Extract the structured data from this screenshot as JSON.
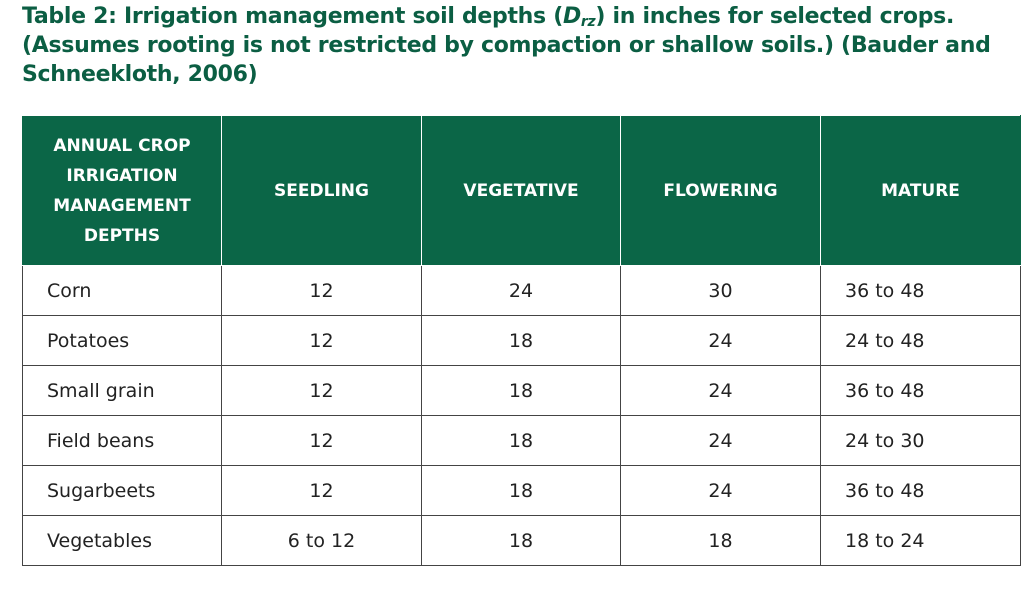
{
  "caption": {
    "part1": "Table 2: Irrigation management soil depths (",
    "symbol": "D",
    "subscript": "rz",
    "part2": ") in inches for selected crops. (Assumes rooting is not restricted by compaction or shallow soils.) (Bauder and Schneekloth, 2006)"
  },
  "headers": [
    "ANNUAL CROP IRRIGATION MANAGEMENT DEPTHS",
    "SEEDLING",
    "VEGETATIVE",
    "FLOWERING",
    "MATURE"
  ],
  "rows": [
    [
      "Corn",
      "12",
      "24",
      "30",
      "36 to 48"
    ],
    [
      "Potatoes",
      "12",
      "18",
      "24",
      "24 to 48"
    ],
    [
      "Small grain",
      "12",
      "18",
      "24",
      "36 to 48"
    ],
    [
      "Field beans",
      "12",
      "18",
      "24",
      "24 to 30"
    ],
    [
      "Sugarbeets",
      "12",
      "18",
      "24",
      "36 to 48"
    ],
    [
      "Vegetables",
      "6 to 12",
      "18",
      "18",
      "18 to 24"
    ]
  ],
  "colors": {
    "header_bg": "#0b6647",
    "caption_text": "#0b5e43"
  }
}
